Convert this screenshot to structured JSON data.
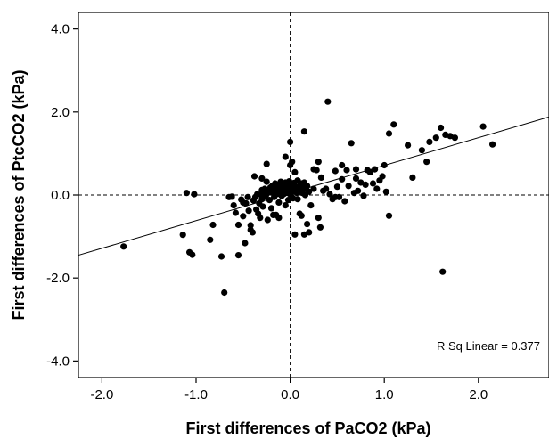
{
  "chart_data": {
    "type": "scatter",
    "xlabel": "First differences of PaCO2 (kPa)",
    "ylabel": "First differences of PtcCO2 (kPa)",
    "xlim": [
      -2.25,
      2.75
    ],
    "ylim": [
      -4.4,
      4.4
    ],
    "x_ticks": [
      -2.0,
      -1.0,
      0.0,
      1.0,
      2.0
    ],
    "x_tick_labels": [
      "-2.0",
      "-1.0",
      "0.0",
      "1.0",
      "2.0"
    ],
    "y_ticks": [
      4.0,
      2.0,
      0.0,
      -2.0,
      -4.0
    ],
    "y_tick_labels": [
      "4.0",
      "2.0",
      "0.0",
      "-2.0",
      "-4.0"
    ],
    "reference_lines": {
      "x": 0,
      "y": 0,
      "style": "dashed"
    },
    "fit_line": {
      "type": "linear",
      "x": [
        -2.25,
        2.75
      ],
      "y": [
        -1.45,
        1.88
      ]
    },
    "annotation": "R Sq Linear = 0.377",
    "grid": false,
    "points": [
      [
        -1.77,
        -1.24
      ],
      [
        -1.1,
        0.05
      ],
      [
        -1.02,
        0.02
      ],
      [
        -1.14,
        -0.96
      ],
      [
        -1.07,
        -1.38
      ],
      [
        -1.04,
        -1.44
      ],
      [
        -0.85,
        -1.08
      ],
      [
        -0.82,
        -0.72
      ],
      [
        -0.73,
        -1.48
      ],
      [
        -0.7,
        -2.35
      ],
      [
        -0.65,
        -0.05
      ],
      [
        -0.62,
        -0.04
      ],
      [
        -0.6,
        -0.25
      ],
      [
        -0.58,
        -0.43
      ],
      [
        -0.55,
        -0.72
      ],
      [
        -0.55,
        -1.45
      ],
      [
        -0.52,
        -0.11
      ],
      [
        -0.5,
        -0.18
      ],
      [
        -0.5,
        -0.51
      ],
      [
        -0.48,
        -1.16
      ],
      [
        -0.47,
        -0.2
      ],
      [
        -0.45,
        -0.05
      ],
      [
        -0.44,
        -0.38
      ],
      [
        -0.42,
        -0.84
      ],
      [
        -0.42,
        -0.73
      ],
      [
        -0.4,
        -0.9
      ],
      [
        -0.39,
        -0.13
      ],
      [
        -0.38,
        0.45
      ],
      [
        -0.37,
        -0.05
      ],
      [
        -0.36,
        -0.35
      ],
      [
        -0.35,
        0.02
      ],
      [
        -0.34,
        -0.45
      ],
      [
        -0.33,
        -0.2
      ],
      [
        -0.32,
        -0.55
      ],
      [
        -0.31,
        0.0
      ],
      [
        -0.3,
        0.12
      ],
      [
        -0.3,
        -0.1
      ],
      [
        -0.29,
        -0.28
      ],
      [
        -0.28,
        0.05
      ],
      [
        -0.27,
        0.15
      ],
      [
        -0.26,
        -0.02
      ],
      [
        -0.25,
        0.02
      ],
      [
        -0.25,
        0.32
      ],
      [
        -0.24,
        -0.6
      ],
      [
        -0.23,
        0.08
      ],
      [
        -0.22,
        -0.12
      ],
      [
        -0.21,
        0.18
      ],
      [
        -0.2,
        0.06
      ],
      [
        -0.2,
        -0.32
      ],
      [
        -0.19,
        0.22
      ],
      [
        -0.18,
        0.1
      ],
      [
        -0.17,
        -0.05
      ],
      [
        -0.16,
        0.28
      ],
      [
        -0.15,
        0.15
      ],
      [
        -0.15,
        -0.48
      ],
      [
        -0.14,
        0.03
      ],
      [
        -0.13,
        0.25
      ],
      [
        -0.12,
        0.12
      ],
      [
        -0.12,
        -0.18
      ],
      [
        -0.11,
        0.2
      ],
      [
        -0.1,
        0.08
      ],
      [
        -0.1,
        0.32
      ],
      [
        -0.09,
        -0.02
      ],
      [
        -0.08,
        0.17
      ],
      [
        -0.07,
        0.02
      ],
      [
        -0.07,
        0.25
      ],
      [
        -0.06,
        0.1
      ],
      [
        -0.05,
        0.3
      ],
      [
        -0.05,
        -0.25
      ],
      [
        -0.04,
        0.15
      ],
      [
        -0.03,
        0.05
      ],
      [
        -0.02,
        0.22
      ],
      [
        -0.02,
        -0.12
      ],
      [
        -0.01,
        0.33
      ],
      [
        0.0,
        0.12
      ],
      [
        0.0,
        0.02
      ],
      [
        0.01,
        0.25
      ],
      [
        0.02,
        0.08
      ],
      [
        0.03,
        0.18
      ],
      [
        0.03,
        -0.08
      ],
      [
        0.04,
        0.29
      ],
      [
        0.05,
        0.12
      ],
      [
        0.06,
        0.2
      ],
      [
        0.07,
        0.05
      ],
      [
        0.08,
        0.35
      ],
      [
        0.09,
        0.15
      ],
      [
        0.1,
        0.22
      ],
      [
        0.11,
        0.1
      ],
      [
        0.12,
        0.28
      ],
      [
        0.13,
        0.05
      ],
      [
        0.14,
        0.18
      ],
      [
        0.15,
        0.3
      ],
      [
        0.16,
        0.0
      ],
      [
        0.17,
        0.15
      ],
      [
        0.18,
        0.22
      ],
      [
        0.2,
        0.08
      ],
      [
        -0.25,
        0.75
      ],
      [
        -0.18,
        -0.48
      ],
      [
        -0.12,
        -0.55
      ],
      [
        -0.05,
        0.92
      ],
      [
        0.0,
        1.28
      ],
      [
        0.02,
        0.8
      ],
      [
        0.05,
        0.55
      ],
      [
        0.08,
        -0.1
      ],
      [
        0.1,
        -0.45
      ],
      [
        0.12,
        -0.5
      ],
      [
        0.15,
        1.53
      ],
      [
        0.18,
        -0.7
      ],
      [
        0.2,
        -0.9
      ],
      [
        0.22,
        -0.25
      ],
      [
        0.25,
        0.15
      ],
      [
        0.28,
        0.6
      ],
      [
        0.3,
        0.8
      ],
      [
        0.3,
        -0.55
      ],
      [
        0.32,
        -0.78
      ],
      [
        0.35,
        0.1
      ],
      [
        0.38,
        0.15
      ],
      [
        0.4,
        2.25
      ],
      [
        0.42,
        0.02
      ],
      [
        0.45,
        -0.1
      ],
      [
        0.48,
        0.58
      ],
      [
        0.5,
        0.2
      ],
      [
        0.52,
        -0.05
      ],
      [
        0.55,
        0.38
      ],
      [
        0.58,
        -0.15
      ],
      [
        0.6,
        0.6
      ],
      [
        0.62,
        0.22
      ],
      [
        0.65,
        1.25
      ],
      [
        0.68,
        0.05
      ],
      [
        0.7,
        0.4
      ],
      [
        0.72,
        0.1
      ],
      [
        0.75,
        0.3
      ],
      [
        0.78,
        -0.02
      ],
      [
        0.8,
        0.25
      ],
      [
        0.82,
        0.6
      ],
      [
        0.85,
        0.55
      ],
      [
        0.88,
        0.28
      ],
      [
        0.9,
        0.62
      ],
      [
        0.92,
        0.15
      ],
      [
        0.95,
        0.35
      ],
      [
        0.98,
        0.45
      ],
      [
        1.0,
        0.72
      ],
      [
        1.02,
        0.08
      ],
      [
        1.05,
        -0.5
      ],
      [
        1.05,
        1.48
      ],
      [
        1.1,
        1.7
      ],
      [
        1.25,
        1.2
      ],
      [
        1.3,
        0.42
      ],
      [
        1.4,
        1.08
      ],
      [
        1.45,
        0.8
      ],
      [
        1.48,
        1.28
      ],
      [
        1.55,
        1.38
      ],
      [
        1.6,
        1.62
      ],
      [
        1.65,
        1.45
      ],
      [
        1.7,
        1.42
      ],
      [
        1.75,
        1.38
      ],
      [
        1.62,
        -1.85
      ],
      [
        2.05,
        1.65
      ],
      [
        2.15,
        1.22
      ],
      [
        0.0,
        0.72
      ],
      [
        0.05,
        -0.95
      ],
      [
        -0.3,
        0.4
      ],
      [
        0.25,
        0.62
      ],
      [
        0.55,
        0.72
      ],
      [
        0.7,
        0.62
      ],
      [
        0.48,
        -0.05
      ],
      [
        0.33,
        0.42
      ],
      [
        0.15,
        -0.95
      ]
    ]
  }
}
